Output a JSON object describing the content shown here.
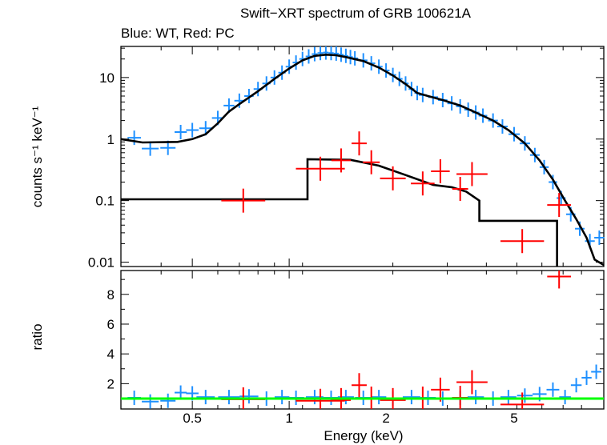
{
  "title": "Swift−XRT spectrum of GRB 100621A",
  "subtitle": "Blue: WT, Red: PC",
  "colors": {
    "wt": "#1e90ff",
    "pc": "#ff0000",
    "model": "#000000",
    "unity": "#00ff00"
  },
  "chart_data": [
    {
      "type": "line",
      "panel": "spectrum",
      "xlabel": "Energy (keV)",
      "ylabel": "counts s⁻¹ keV⁻¹",
      "xscale": "log",
      "yscale": "log",
      "xlim": [
        0.3,
        9.5
      ],
      "ylim": [
        0.0085,
        32
      ],
      "ytick_labels": [
        "0.01",
        "0.1",
        "1",
        "10"
      ],
      "yticks": [
        0.01,
        0.1,
        1,
        10
      ],
      "grid": false,
      "series": [
        {
          "key": "wt_data",
          "style": "crosses",
          "points": [
            [
              0.33,
              1.05
            ],
            [
              0.37,
              0.7
            ],
            [
              0.42,
              0.72
            ],
            [
              0.46,
              1.3
            ],
            [
              0.5,
              1.4
            ],
            [
              0.55,
              1.5
            ],
            [
              0.6,
              2.2
            ],
            [
              0.65,
              3.5
            ],
            [
              0.7,
              4.2
            ],
            [
              0.75,
              5.0
            ],
            [
              0.8,
              6.5
            ],
            [
              0.85,
              8.0
            ],
            [
              0.9,
              10.0
            ],
            [
              0.95,
              12.0
            ],
            [
              1.0,
              15.0
            ],
            [
              1.05,
              17.5
            ],
            [
              1.1,
              20.0
            ],
            [
              1.15,
              22.0
            ],
            [
              1.2,
              24.0
            ],
            [
              1.25,
              25.0
            ],
            [
              1.3,
              25.5
            ],
            [
              1.35,
              25.0
            ],
            [
              1.4,
              24.5
            ],
            [
              1.45,
              23.5
            ],
            [
              1.5,
              22.5
            ],
            [
              1.55,
              21.5
            ],
            [
              1.6,
              20.5
            ],
            [
              1.7,
              19.0
            ],
            [
              1.8,
              17.0
            ],
            [
              1.9,
              15.0
            ],
            [
              2.0,
              13.0
            ],
            [
              2.1,
              11.0
            ],
            [
              2.2,
              9.5
            ],
            [
              2.3,
              8.0
            ],
            [
              2.4,
              6.5
            ],
            [
              2.5,
              5.6
            ],
            [
              2.6,
              5.2
            ],
            [
              2.8,
              4.8
            ],
            [
              3.0,
              4.3
            ],
            [
              3.2,
              3.8
            ],
            [
              3.4,
              3.4
            ],
            [
              3.6,
              3.0
            ],
            [
              3.8,
              2.7
            ],
            [
              4.0,
              2.4
            ],
            [
              4.3,
              2.0
            ],
            [
              4.6,
              1.6
            ],
            [
              5.0,
              1.2
            ],
            [
              5.4,
              0.85
            ],
            [
              5.8,
              0.55
            ],
            [
              6.2,
              0.35
            ],
            [
              6.6,
              0.2
            ],
            [
              7.0,
              0.11
            ],
            [
              7.5,
              0.06
            ],
            [
              8.0,
              0.035
            ],
            [
              8.6,
              0.022
            ],
            [
              9.2,
              0.025
            ]
          ]
        },
        {
          "key": "wt_model",
          "style": "step",
          "points": [
            [
              0.3,
              1.0
            ],
            [
              0.35,
              0.88
            ],
            [
              0.45,
              0.9
            ],
            [
              0.5,
              1.0
            ],
            [
              0.55,
              1.2
            ],
            [
              0.6,
              1.8
            ],
            [
              0.65,
              2.8
            ],
            [
              0.7,
              3.7
            ],
            [
              0.8,
              6.0
            ],
            [
              0.9,
              9.5
            ],
            [
              1.0,
              14.0
            ],
            [
              1.1,
              19.0
            ],
            [
              1.2,
              22.5
            ],
            [
              1.3,
              23.5
            ],
            [
              1.4,
              23.0
            ],
            [
              1.5,
              21.5
            ],
            [
              1.7,
              18.5
            ],
            [
              1.9,
              14.5
            ],
            [
              2.1,
              10.8
            ],
            [
              2.3,
              7.8
            ],
            [
              2.4,
              6.6
            ],
            [
              2.5,
              5.6
            ],
            [
              2.7,
              5.0
            ],
            [
              3.0,
              4.3
            ],
            [
              3.4,
              3.5
            ],
            [
              3.8,
              2.7
            ],
            [
              4.3,
              2.0
            ],
            [
              4.8,
              1.4
            ],
            [
              5.4,
              0.85
            ],
            [
              6.0,
              0.45
            ],
            [
              6.6,
              0.22
            ],
            [
              7.2,
              0.1
            ],
            [
              7.8,
              0.05
            ],
            [
              8.4,
              0.025
            ],
            [
              8.9,
              0.011
            ],
            [
              9.5,
              0.009
            ]
          ]
        },
        {
          "key": "pc_data",
          "style": "crosses",
          "points": [
            [
              0.72,
              0.1
            ],
            [
              1.25,
              0.33
            ],
            [
              1.45,
              0.45
            ],
            [
              1.65,
              0.85
            ],
            [
              1.8,
              0.42
            ],
            [
              2.1,
              0.23
            ],
            [
              2.6,
              0.19
            ],
            [
              2.95,
              0.3
            ],
            [
              3.4,
              0.155
            ],
            [
              3.7,
              0.27
            ],
            [
              5.3,
              0.022
            ],
            [
              6.9,
              0.085
            ]
          ]
        },
        {
          "key": "pc_model",
          "style": "step",
          "points": [
            [
              0.3,
              0.105
            ],
            [
              1.14,
              0.105
            ],
            [
              1.14,
              0.47
            ],
            [
              1.55,
              0.46
            ],
            [
              1.9,
              0.37
            ],
            [
              2.3,
              0.26
            ],
            [
              2.8,
              0.18
            ],
            [
              3.2,
              0.165
            ],
            [
              3.55,
              0.14
            ],
            [
              3.9,
              0.1
            ],
            [
              3.9,
              0.047
            ],
            [
              6.8,
              0.047
            ],
            [
              6.8,
              0.0085
            ]
          ]
        }
      ]
    },
    {
      "type": "scatter",
      "panel": "ratio",
      "xlabel": "Energy (keV)",
      "ylabel": "ratio",
      "xscale": "log",
      "yscale": "linear",
      "xlim": [
        0.3,
        9.5
      ],
      "ylim": [
        0.3,
        9.6
      ],
      "ytick_labels": [
        "2",
        "4",
        "6",
        "8"
      ],
      "yticks": [
        2,
        4,
        6,
        8
      ],
      "xtick_labels": [
        "0.5",
        "1",
        "2",
        "5"
      ],
      "xticks": [
        0.5,
        1,
        2,
        5
      ],
      "unity": 1.0,
      "series": [
        {
          "key": "wt_ratio",
          "style": "crosses",
          "points": [
            [
              0.33,
              1.05
            ],
            [
              0.37,
              0.8
            ],
            [
              0.42,
              0.85
            ],
            [
              0.46,
              1.4
            ],
            [
              0.5,
              1.35
            ],
            [
              0.55,
              1.1
            ],
            [
              0.65,
              1.1
            ],
            [
              0.75,
              1.15
            ],
            [
              0.85,
              1.0
            ],
            [
              0.95,
              1.1
            ],
            [
              1.05,
              1.05
            ],
            [
              1.2,
              1.1
            ],
            [
              1.35,
              1.05
            ],
            [
              1.5,
              1.1
            ],
            [
              1.7,
              1.05
            ],
            [
              1.9,
              1.1
            ],
            [
              2.1,
              1.0
            ],
            [
              2.4,
              1.1
            ],
            [
              2.7,
              1.05
            ],
            [
              3.0,
              1.0
            ],
            [
              3.4,
              1.05
            ],
            [
              3.8,
              1.1
            ],
            [
              4.3,
              1.0
            ],
            [
              4.8,
              1.1
            ],
            [
              5.4,
              1.2
            ],
            [
              6.0,
              1.3
            ],
            [
              6.6,
              1.6
            ],
            [
              7.2,
              1.1
            ],
            [
              7.8,
              1.9
            ],
            [
              8.4,
              2.4
            ],
            [
              9.0,
              2.8
            ]
          ]
        },
        {
          "key": "pc_ratio",
          "style": "crosses",
          "points": [
            [
              0.72,
              0.95
            ],
            [
              1.25,
              0.85
            ],
            [
              1.45,
              0.9
            ],
            [
              1.65,
              1.9
            ],
            [
              1.8,
              1.0
            ],
            [
              2.1,
              0.9
            ],
            [
              2.6,
              1.0
            ],
            [
              2.95,
              1.6
            ],
            [
              3.4,
              1.05
            ],
            [
              3.7,
              2.1
            ],
            [
              5.3,
              0.6
            ],
            [
              6.9,
              9.2
            ]
          ]
        }
      ]
    }
  ]
}
